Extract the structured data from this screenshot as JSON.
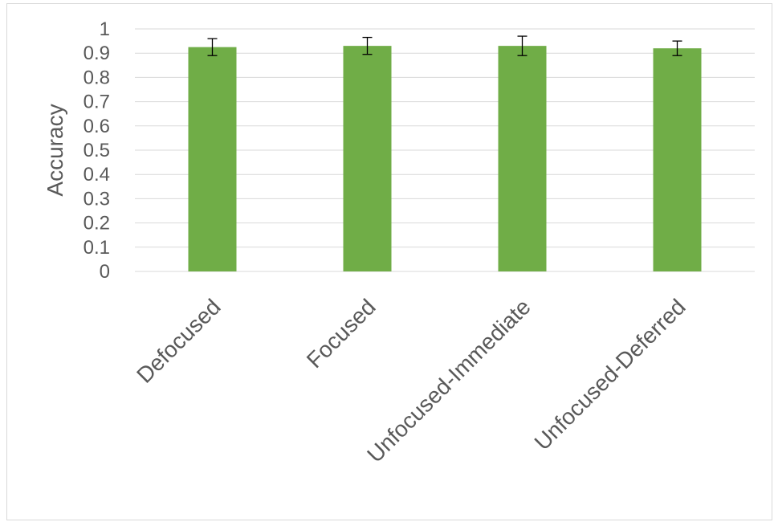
{
  "chart_data": {
    "type": "bar",
    "title": "",
    "xlabel": "",
    "ylabel": "Accuracy",
    "ylim": [
      0,
      1
    ],
    "yticks": [
      "0",
      "0.1",
      "0.2",
      "0.3",
      "0.4",
      "0.5",
      "0.6",
      "0.7",
      "0.8",
      "0.9",
      "1"
    ],
    "categories": [
      "Defocused",
      "Focused",
      "Unfocused-Immediate",
      "Unfocused-Deferred"
    ],
    "values": [
      0.925,
      0.93,
      0.93,
      0.92
    ],
    "error": [
      0.035,
      0.035,
      0.04,
      0.03
    ],
    "grid": true,
    "legend": "none",
    "colors": {
      "bar": "#70ad47",
      "grid": "#d9d9d9",
      "text": "#595959",
      "errorbar": "#000000"
    }
  }
}
